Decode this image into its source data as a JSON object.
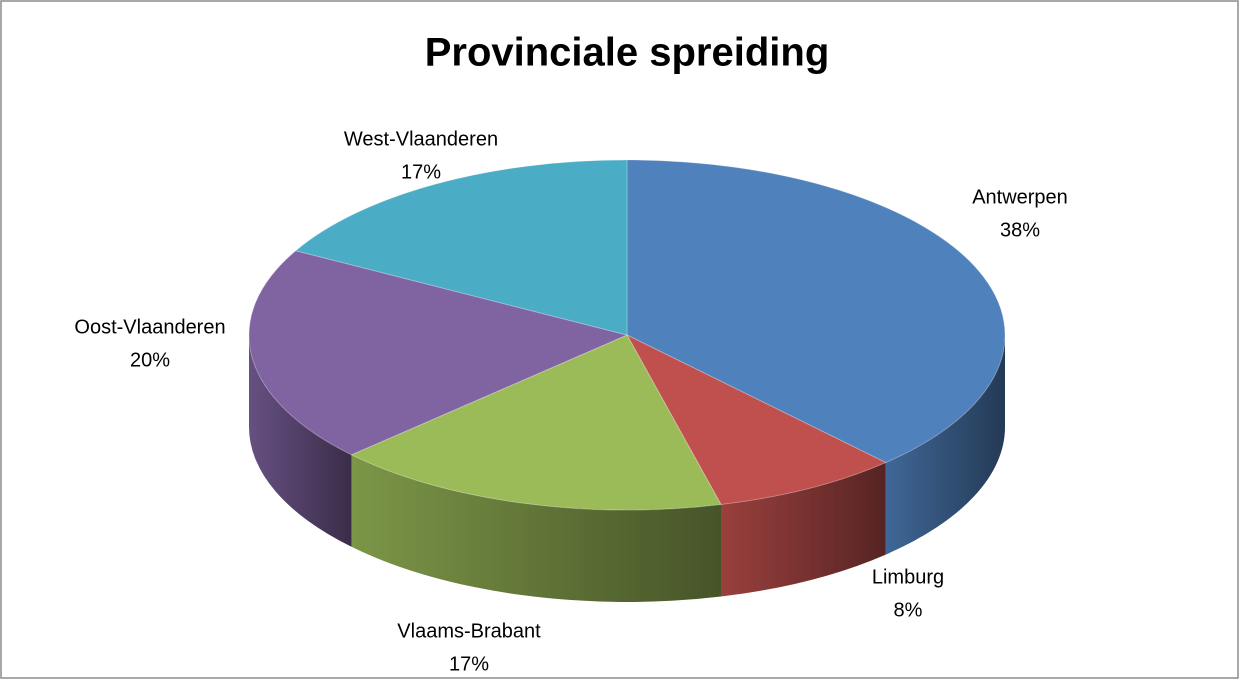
{
  "chart_data": {
    "type": "pie",
    "title": "Provinciale spreiding",
    "categories": [
      "Antwerpen",
      "Limburg",
      "Vlaams-Brabant",
      "Oost-Vlaanderen",
      "West-Vlaanderen"
    ],
    "values": [
      38,
      8,
      17,
      20,
      17
    ],
    "value_labels": [
      "38%",
      "8%",
      "17%",
      "20%",
      "17%"
    ],
    "colors": [
      "#4f81bd",
      "#c0504d",
      "#9bbb59",
      "#8064a2",
      "#4bacc6"
    ]
  }
}
